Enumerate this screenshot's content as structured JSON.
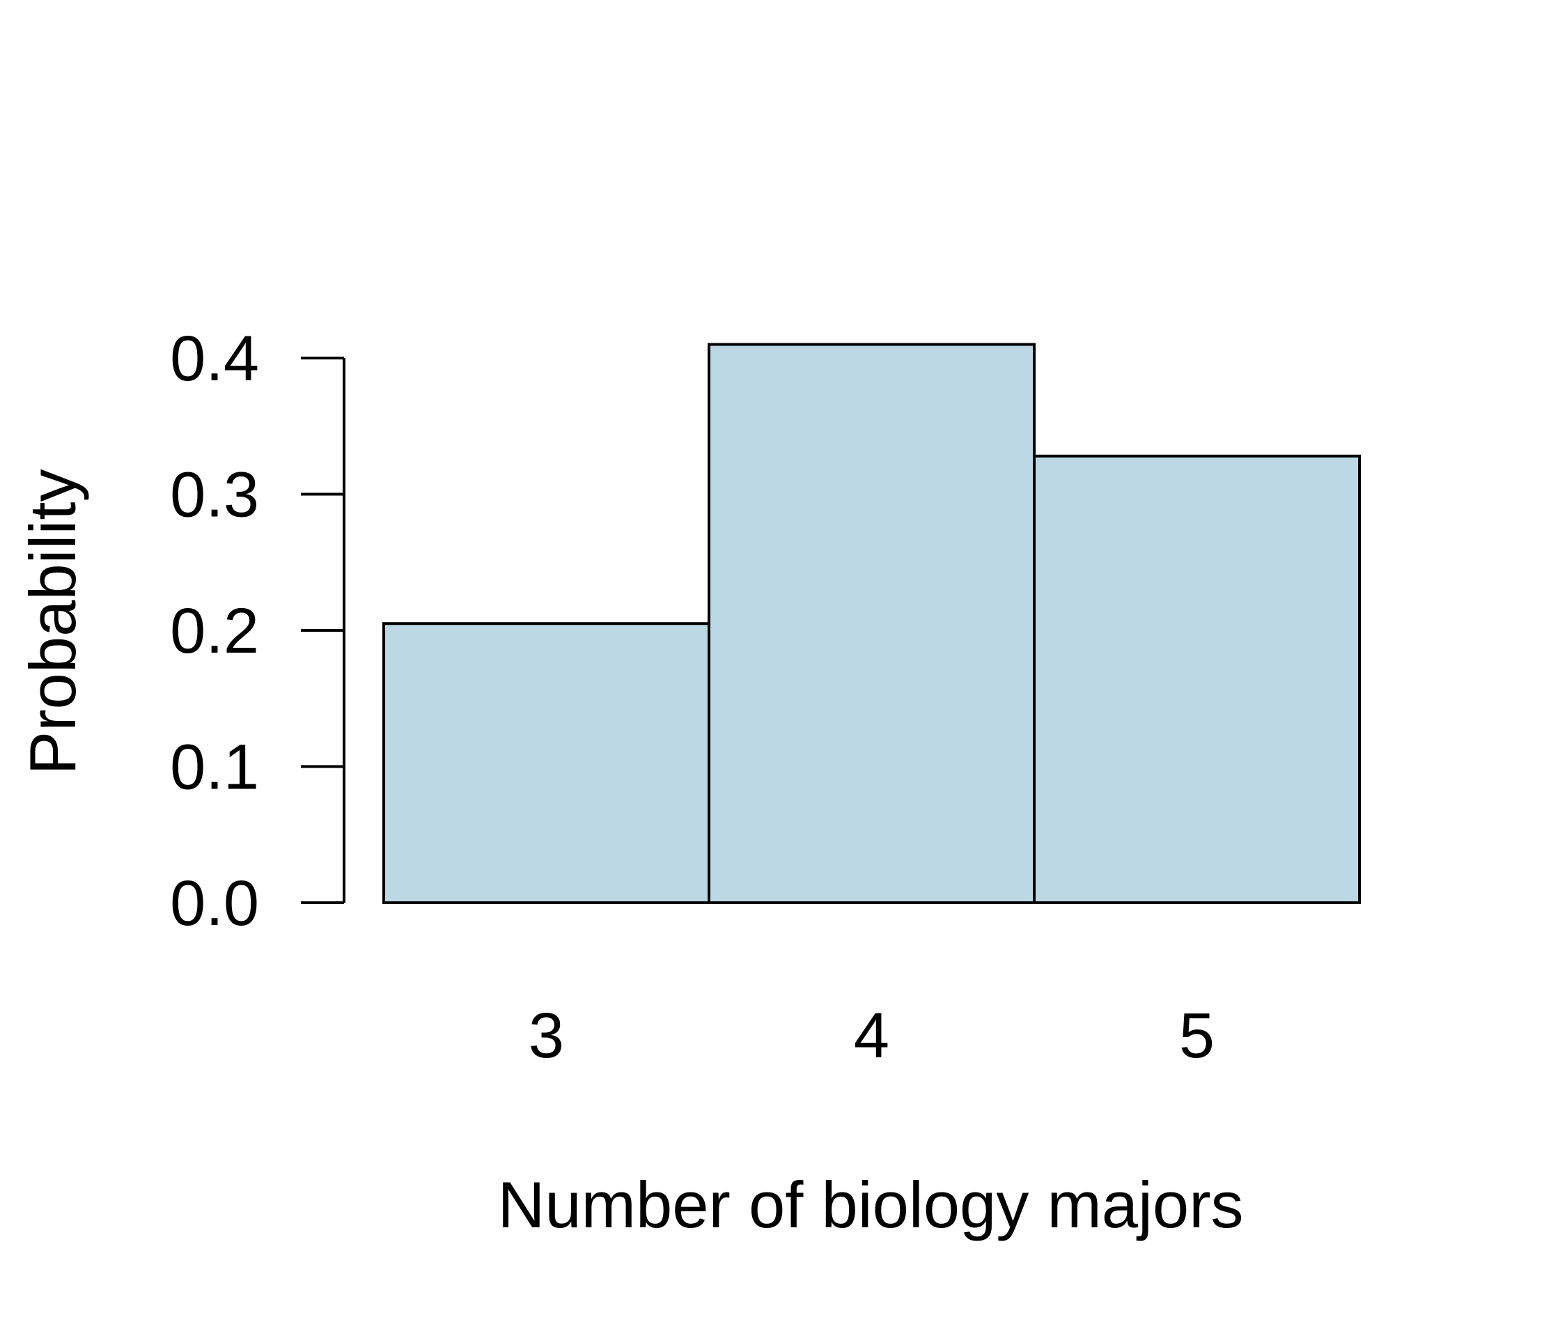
{
  "chart_data": {
    "type": "bar",
    "title": "",
    "xlabel": "Number of biology majors",
    "ylabel": "Probability",
    "categories": [
      "3",
      "4",
      "5"
    ],
    "values": [
      0.205,
      0.41,
      0.328
    ],
    "ylim": [
      0,
      0.4
    ],
    "yticks": [
      "0.0",
      "0.1",
      "0.2",
      "0.3",
      "0.4"
    ],
    "grid": false,
    "legend": "none",
    "colors": {
      "bar_fill": "#bcd8e5",
      "bar_stroke": "#000000",
      "axis": "#000000"
    }
  }
}
